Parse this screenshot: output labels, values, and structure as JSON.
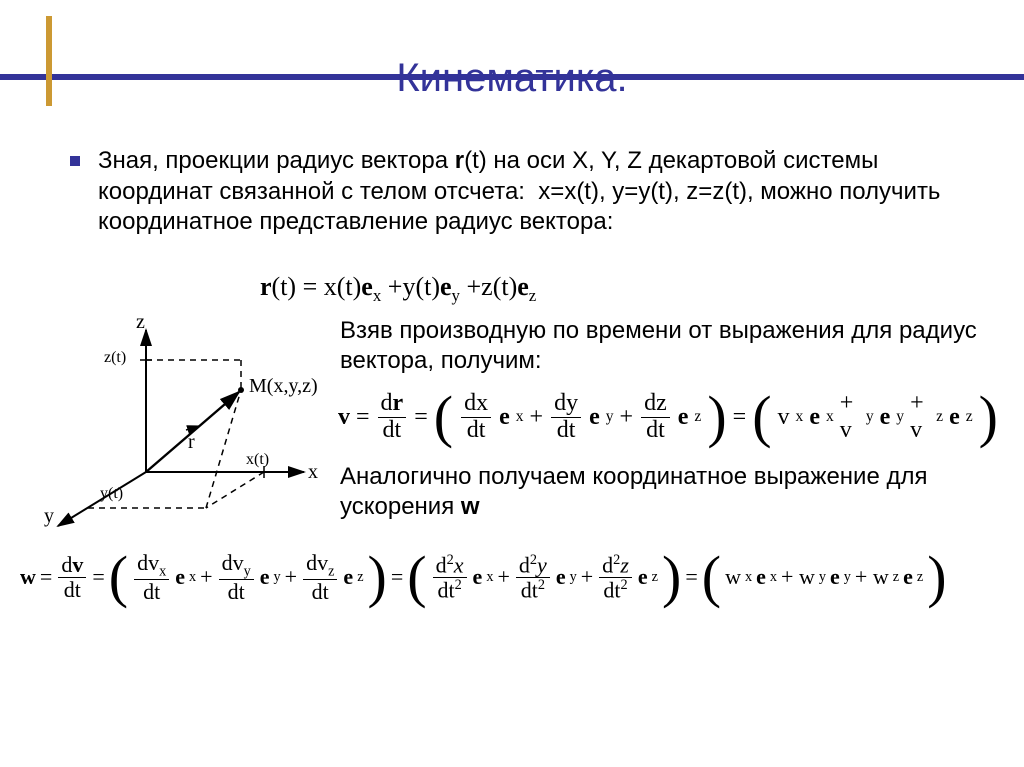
{
  "title": "Кинематика.",
  "colors": {
    "title": "#333399",
    "hline": "#333399",
    "vline": "#cc9933",
    "bullet": "#333399",
    "text": "#000000",
    "bg": "#ffffff"
  },
  "fontsize": {
    "title": 40,
    "body": 24,
    "eq": 24
  },
  "para1_html": "Зная, проекции радиус вектора <b>r</b>(t) на оси X, Y, Z декартовой системы координат связанной с телом отсчета: &nbsp;x=x(t), y=y(t), z=z(t), можно получить координатное представление радиус вектора:",
  "eq1": {
    "lhs": "r",
    "lhs_arg": "(t) = ",
    "terms": [
      "x(t)",
      "y(t)",
      "z(t)"
    ],
    "basis": [
      "e",
      "e",
      "e"
    ],
    "subs": [
      "x",
      "y",
      "z"
    ]
  },
  "para2": "Взяв производную по времени от выражения для радиус вектора, получим:",
  "eq2": {
    "v": "v",
    "eq": " = ",
    "dr": "d",
    "r": "r",
    "dt": "dt",
    "dx": "dx",
    "dy": "dy",
    "dz": "dz",
    "ex": "x",
    "ey": "y",
    "ez": "z",
    "vx": "v",
    "vy": "v",
    "vz": "v"
  },
  "para3_html": "Аналогично получаем координатное выражение для ускорения <b>w</b>",
  "eq3": {
    "w": "w",
    "v": "v",
    "dt": "dt",
    "x": "x",
    "y": "y",
    "z": "z",
    "d": "d",
    "d2": "d",
    "sq": "2"
  },
  "diagram": {
    "axes": [
      "x",
      "y",
      "z"
    ],
    "point_label": "M(x,y,z)",
    "vec_label": "r",
    "ticks": [
      "x(t)",
      "y(t)",
      "z(t)"
    ],
    "stroke": "#000000",
    "dash": "5,4",
    "linewidth": 2
  }
}
